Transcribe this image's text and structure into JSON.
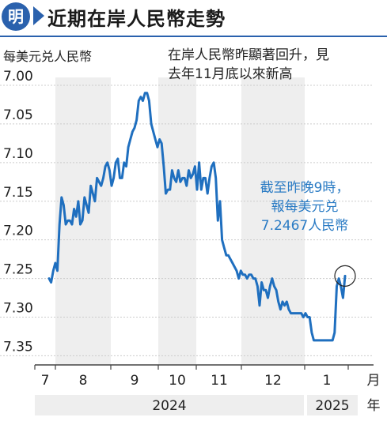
{
  "header": {
    "badge": "明",
    "title": "近期在岸人民幣走勢"
  },
  "unit_label": "每美元兑人民幣",
  "note_lines": [
    "在岸人民幣昨顯著回升，見",
    "去年11月底以來新高"
  ],
  "callout_lines": [
    "截至昨晚9時，",
    "報每美元兑",
    "7.2467人民幣"
  ],
  "colors": {
    "accent": "#2a61ad",
    "line": "#1f6fbf",
    "callout": "#2a7bc4",
    "band": "#eeeeee",
    "grid": "#cccccc"
  },
  "chart_data": {
    "type": "line",
    "y_inverted": true,
    "ylim": [
      7.0,
      7.37
    ],
    "yticks": [
      "7.00",
      "7.05",
      "7.10",
      "7.15",
      "7.20",
      "7.25",
      "7.30",
      "7.35"
    ],
    "month_labels": [
      "7",
      "8",
      "9",
      "10",
      "11",
      "12",
      "1"
    ],
    "month_unit": "月",
    "year_labels": [
      "2024",
      "2025"
    ],
    "year_unit": "年",
    "grid": "horizontal",
    "series": [
      {
        "values": [
          7.25,
          7.255,
          7.24,
          7.23,
          7.24,
          7.18,
          7.145,
          7.155,
          7.18,
          7.175,
          7.175,
          7.18,
          7.16,
          7.17,
          7.15,
          7.18,
          7.175,
          7.145,
          7.155,
          7.165,
          7.13,
          7.14,
          7.15,
          7.12,
          7.125,
          7.13,
          7.12,
          7.105,
          7.1,
          7.11,
          7.13,
          7.12,
          7.1,
          7.095,
          7.12,
          7.12,
          7.1,
          7.105,
          7.08,
          7.07,
          7.06,
          7.055,
          7.045,
          7.02,
          7.015,
          7.02,
          7.01,
          7.01,
          7.02,
          7.05,
          7.06,
          7.07,
          7.08,
          7.07,
          7.075,
          7.105,
          7.14,
          7.135,
          7.135,
          7.11,
          7.12,
          7.125,
          7.11,
          7.125,
          7.12,
          7.12,
          7.13,
          7.11,
          7.12,
          7.115,
          7.105,
          7.135,
          7.1,
          7.135,
          7.12,
          7.12,
          7.14,
          7.12,
          7.105,
          7.1,
          7.12,
          7.175,
          7.15,
          7.2,
          7.21,
          7.22,
          7.22,
          7.225,
          7.23,
          7.235,
          7.24,
          7.25,
          7.24,
          7.245,
          7.245,
          7.25,
          7.245,
          7.245,
          7.25,
          7.25,
          7.26,
          7.285,
          7.255,
          7.265,
          7.265,
          7.275,
          7.26,
          7.25,
          7.26,
          7.265,
          7.28,
          7.29,
          7.28,
          7.285,
          7.28,
          7.29,
          7.295,
          7.295,
          7.295,
          7.295,
          7.295,
          7.295,
          7.3,
          7.295,
          7.3,
          7.3,
          7.32,
          7.33,
          7.33,
          7.33,
          7.33,
          7.33,
          7.33,
          7.33,
          7.33,
          7.33,
          7.33,
          7.32,
          7.26,
          7.25,
          7.26,
          7.275,
          7.2467
        ]
      }
    ],
    "annotation": {
      "value": 7.2467,
      "text": "截至昨晚9時，報每美元兑7.2467人民幣"
    }
  }
}
